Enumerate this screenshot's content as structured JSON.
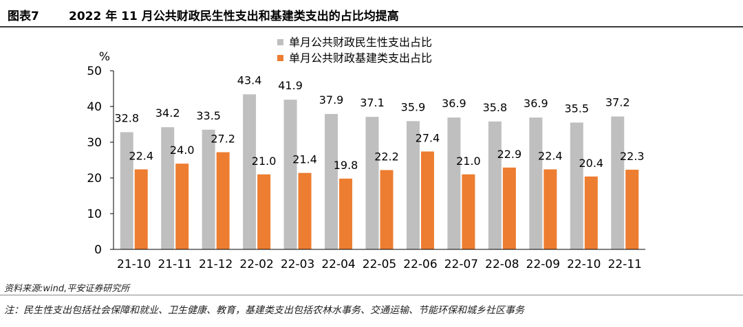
{
  "header": {
    "figure_label": "图表7",
    "title": "2022 年 11 月公共财政民生性支出和基建类支出的占比均提高"
  },
  "footer": {
    "source": "资料来源:wind,平安证券研究所",
    "note": "注：民生性支出包括社会保障和就业、卫生健康、教育，基建类支出包括农林水事务、交通运输、节能环保和城乡社区事务"
  },
  "chart_data": {
    "type": "bar",
    "unit_label": "%",
    "categories": [
      "21-10",
      "21-11",
      "21-12",
      "22-02",
      "22-03",
      "22-04",
      "22-05",
      "22-06",
      "22-07",
      "22-08",
      "22-09",
      "22-10",
      "22-11"
    ],
    "series": [
      {
        "name": "单月公共财政民生性支出占比",
        "color": "#bfbfbf",
        "values": [
          32.8,
          34.2,
          33.5,
          43.4,
          41.9,
          37.9,
          37.1,
          35.9,
          36.9,
          35.8,
          36.9,
          35.5,
          37.2
        ],
        "labels": [
          "32.8",
          "34.2",
          "33.5",
          "43.4",
          "41.9",
          "37.9",
          "37.1",
          "35.9",
          "36.9",
          "35.8",
          "36.9",
          "35.5",
          "37.2"
        ]
      },
      {
        "name": "单月公共财政基建类支出占比",
        "color": "#ed7d31",
        "values": [
          22.4,
          24.0,
          27.2,
          21.0,
          21.4,
          19.8,
          22.2,
          27.4,
          21.0,
          22.9,
          22.4,
          20.4,
          22.3
        ],
        "labels": [
          "22.4",
          "24.0",
          "27.2",
          "21.0",
          "21.4",
          "19.8",
          "22.2",
          "27.4",
          "21.0",
          "22.9",
          "22.4",
          "20.4",
          "22.3"
        ]
      }
    ],
    "ylim": [
      0,
      50
    ],
    "yticks": [
      0,
      10,
      20,
      30,
      40,
      50
    ],
    "ytick_labels": [
      "0",
      "10",
      "20",
      "30",
      "40",
      "50"
    ],
    "legend_position": "top-center",
    "grid": false
  }
}
